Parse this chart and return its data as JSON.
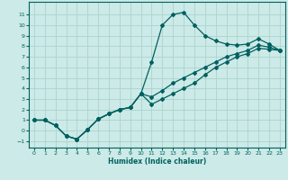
{
  "xlabel": "Humidex (Indice chaleur)",
  "bg_color": "#cceae7",
  "grid_color": "#aad4d0",
  "line_color": "#006060",
  "xlim": [
    -0.5,
    23.5
  ],
  "ylim": [
    -1.6,
    12.2
  ],
  "xticks": [
    0,
    1,
    2,
    3,
    4,
    5,
    6,
    7,
    8,
    9,
    10,
    11,
    12,
    13,
    14,
    15,
    16,
    17,
    18,
    19,
    20,
    21,
    22,
    23
  ],
  "yticks": [
    -1,
    0,
    1,
    2,
    3,
    4,
    5,
    6,
    7,
    8,
    9,
    10,
    11
  ],
  "line1_x": [
    0,
    1,
    2,
    3,
    4,
    5,
    6,
    7,
    8,
    9,
    10,
    11,
    12,
    13,
    14,
    15,
    16,
    17,
    18,
    19,
    20,
    21,
    22,
    23
  ],
  "line1_y": [
    1.0,
    1.0,
    0.5,
    -0.5,
    -0.8,
    0.1,
    1.1,
    1.6,
    2.0,
    2.2,
    3.5,
    6.5,
    10.0,
    11.0,
    11.2,
    10.0,
    9.0,
    8.5,
    8.2,
    8.1,
    8.2,
    8.7,
    8.2,
    7.6
  ],
  "line2_x": [
    0,
    1,
    2,
    3,
    4,
    5,
    6,
    7,
    8,
    9,
    10,
    11,
    12,
    13,
    14,
    15,
    16,
    17,
    18,
    19,
    20,
    21,
    22,
    23
  ],
  "line2_y": [
    1.0,
    1.0,
    0.5,
    -0.5,
    -0.8,
    0.1,
    1.1,
    1.6,
    2.0,
    2.2,
    3.5,
    3.2,
    3.8,
    4.5,
    5.0,
    5.5,
    6.0,
    6.5,
    7.0,
    7.3,
    7.6,
    8.1,
    7.9,
    7.6
  ],
  "line3_x": [
    0,
    1,
    2,
    3,
    4,
    5,
    6,
    7,
    8,
    9,
    10,
    11,
    12,
    13,
    14,
    15,
    16,
    17,
    18,
    19,
    20,
    21,
    22,
    23
  ],
  "line3_y": [
    1.0,
    1.0,
    0.5,
    -0.5,
    -0.8,
    0.1,
    1.1,
    1.6,
    2.0,
    2.2,
    3.5,
    2.5,
    3.0,
    3.5,
    4.0,
    4.5,
    5.3,
    6.0,
    6.5,
    7.0,
    7.3,
    7.8,
    7.7,
    7.6
  ]
}
